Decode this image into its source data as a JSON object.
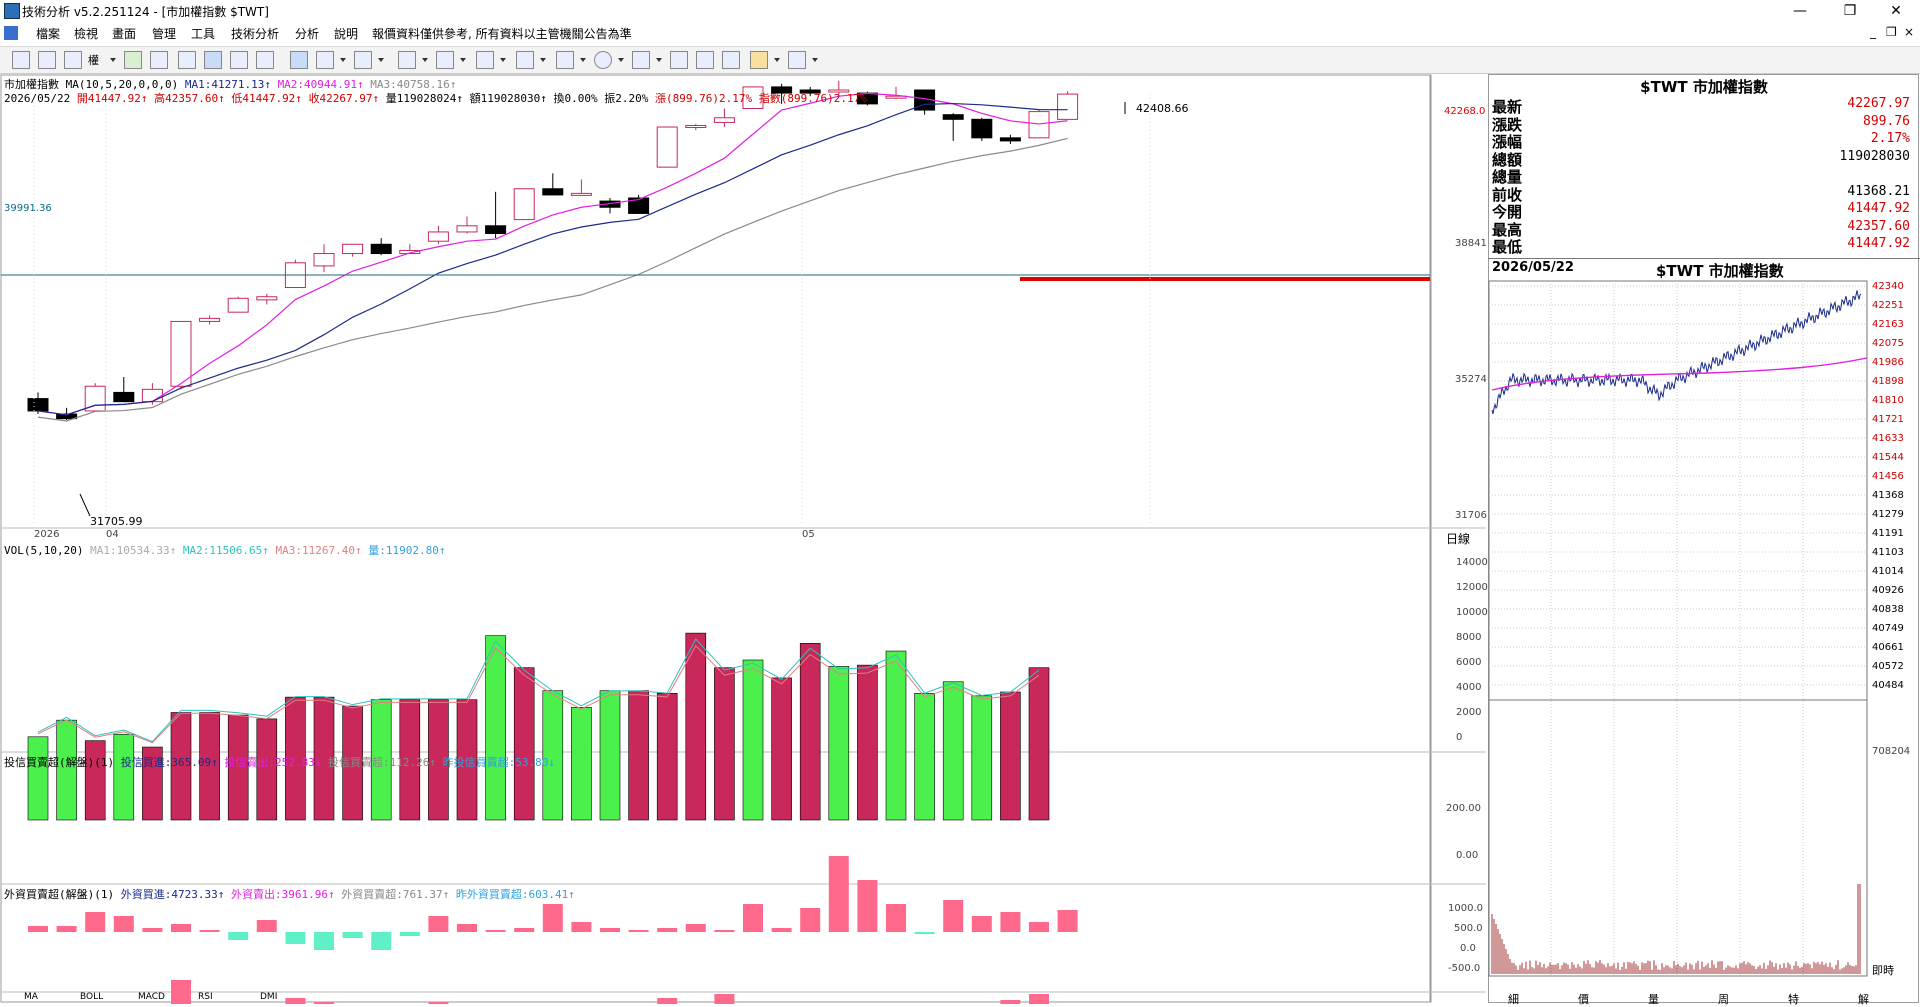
{
  "window": {
    "title": "技術分析 v5.2.251124 - [市加權指數 $TWT]",
    "minimize_icon": "minimize-icon",
    "restore_icon": "restore-icon",
    "close_icon": "close-icon"
  },
  "menu": {
    "items": [
      "檔案",
      "檢視",
      "畫面",
      "管理",
      "工具",
      "技術分析",
      "分析",
      "說明",
      "報價資料僅供參考, 所有資料以主管機關公告為準"
    ],
    "child_min": "_",
    "child_restore": "❐",
    "child_close": "×"
  },
  "main": {
    "legend_ma": {
      "name": "市加權指數 MA(10,5,20,0,0,0)",
      "ma1": "MA1:41271.13↑",
      "ma2": "MA2:40944.91↑",
      "ma3": "MA3:40758.16↑"
    },
    "legend_ohlc": {
      "date": "2026/05/22",
      "open": "開41447.92↑",
      "high": "高42357.60↑",
      "low": "低41447.92↑",
      "close": "收42267.97↑",
      "vol": "量119028024↑",
      "amt": "額119028030↑",
      "turn": "換0.00%",
      "amp": "振2.20%",
      "chg": "漲(899.76)2.17%",
      "idx": "指數(899.76)2.17%"
    },
    "ref_line_label": "39991.36",
    "high_annot": "42408.66",
    "low_annot": "31705.99",
    "y_labels": [
      "42268.0",
      "38841",
      "35274",
      "31706"
    ],
    "x_labels": [
      "2026",
      "04",
      "05"
    ],
    "period_label": "日線",
    "colors": {
      "up": "#c8285a",
      "down": "#000000",
      "ma1": "#e020e0",
      "ma2": "#1a2a8a",
      "ma3": "#8a8a8a",
      "support": "#e00000"
    }
  },
  "vol": {
    "legend": "VOL(5,10,20)",
    "ma1": "MA1:10534.33↑",
    "ma2": "MA2:11506.65↑",
    "ma3": "MA3:11267.40↑",
    "v": "量:11902.80↑",
    "y_labels": [
      "14000",
      "12000",
      "10000",
      "8000",
      "6000",
      "4000",
      "2000",
      "0"
    ]
  },
  "inv": {
    "legend": "投信買賣超(解盤)(1)",
    "buy": "投信買進:365.09↑",
    "sell": "投信賣出:252.83↓",
    "net": "投信買賣超:112.26↑",
    "prev": "昨投信買賣超:53.80↓",
    "y_labels": [
      "200.00",
      "0.00"
    ]
  },
  "foreign": {
    "legend": "外資買賣超(解盤)(1)",
    "buy": "外資買進:4723.33↑",
    "sell": "外資賣出:3961.96↑",
    "net": "外資買賣超:761.37↑",
    "prev": "昨外資買賣超:603.41↑",
    "y_labels": [
      "1000.0",
      "500.0",
      "0.0",
      "-500.0"
    ]
  },
  "tabs": [
    "MA",
    "BOLL",
    "MACD",
    "RSI",
    "DMI"
  ],
  "quote": {
    "title": "$TWT 市加權指數",
    "rows": [
      {
        "k": "最新",
        "v": "42267.97",
        "red": true
      },
      {
        "k": "漲跌",
        "v": "899.76",
        "red": true
      },
      {
        "k": "漲幅",
        "v": "2.17%",
        "red": true
      },
      {
        "k": "總額",
        "v": "119028030",
        "red": false
      },
      {
        "k": "總量",
        "v": "",
        "red": false
      },
      {
        "k": "前收",
        "v": "41368.21",
        "red": false
      },
      {
        "k": "今開",
        "v": "41447.92",
        "red": true
      },
      {
        "k": "最高",
        "v": "42357.60",
        "red": true
      },
      {
        "k": "最低",
        "v": "41447.92",
        "red": true
      }
    ]
  },
  "intraday": {
    "date": "2026/05/22",
    "title": "$TWT 市加權指數",
    "y_labels": [
      "42340",
      "42251",
      "42163",
      "42075",
      "41986",
      "41898",
      "41810",
      "41721",
      "41633",
      "41544",
      "41456",
      "41368",
      "41279",
      "41191",
      "41103",
      "41014",
      "40926",
      "40838",
      "40749",
      "40661",
      "40572",
      "40484"
    ],
    "vol_max": "708204",
    "time_label": "即時",
    "bottom_tabs": [
      "細",
      "價",
      "量",
      "周",
      "特",
      "解"
    ]
  }
}
